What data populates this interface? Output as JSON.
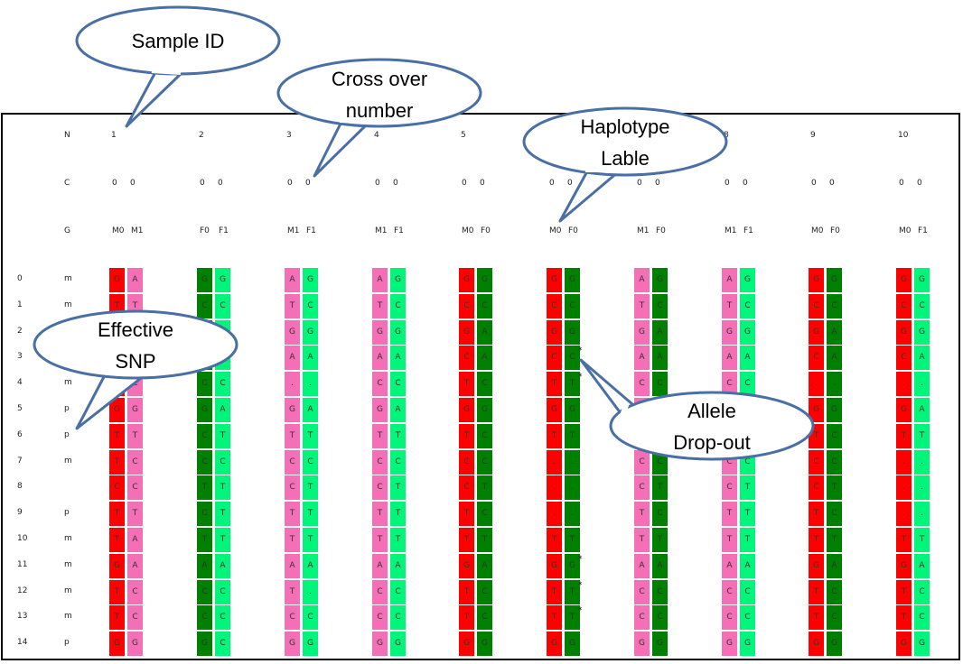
{
  "row_labels": {
    "n": "N",
    "c": "C",
    "g": "G"
  },
  "samples": [
    {
      "id": "1",
      "co": [
        "0",
        "0"
      ],
      "hap": [
        "M0",
        "M1"
      ]
    },
    {
      "id": "2",
      "co": [
        "0",
        "0"
      ],
      "hap": [
        "F0",
        "F1"
      ]
    },
    {
      "id": "3",
      "co": [
        "0",
        "0"
      ],
      "hap": [
        "M1",
        "F1"
      ]
    },
    {
      "id": "4",
      "co": [
        "0",
        "0"
      ],
      "hap": [
        "M1",
        "F1"
      ]
    },
    {
      "id": "5",
      "co": [
        "0",
        "0"
      ],
      "hap": [
        "M0",
        "F0"
      ]
    },
    {
      "id": "6",
      "co": [
        "0",
        "0"
      ],
      "hap": [
        "M0",
        "F0"
      ]
    },
    {
      "id": "7",
      "co": [
        "0",
        "0"
      ],
      "hap": [
        "M1",
        "F0"
      ]
    },
    {
      "id": "8",
      "co": [
        "0",
        "0"
      ],
      "hap": [
        "M1",
        "F1"
      ]
    },
    {
      "id": "9",
      "co": [
        "0",
        "0"
      ],
      "hap": [
        "M0",
        "F0"
      ]
    },
    {
      "id": "10",
      "co": [
        "0",
        "0"
      ],
      "hap": [
        "M0",
        "F1"
      ]
    }
  ],
  "snp_rows": [
    {
      "idx": "0",
      "type": "m"
    },
    {
      "idx": "1",
      "type": "m"
    },
    {
      "idx": "2",
      "type": ""
    },
    {
      "idx": "3",
      "type": ""
    },
    {
      "idx": "4",
      "type": "m"
    },
    {
      "idx": "5",
      "type": "p"
    },
    {
      "idx": "6",
      "type": "p"
    },
    {
      "idx": "7",
      "type": "m"
    },
    {
      "idx": "8",
      "type": ""
    },
    {
      "idx": "9",
      "type": "p"
    },
    {
      "idx": "10",
      "type": "m"
    },
    {
      "idx": "11",
      "type": "m"
    },
    {
      "idx": "12",
      "type": "m"
    },
    {
      "idx": "13",
      "type": "m"
    },
    {
      "idx": "14",
      "type": "p"
    }
  ],
  "genotypes": [
    [
      "G A",
      "G G",
      "A G",
      "A G",
      "G G",
      "G G",
      "A G",
      "A G",
      "G G",
      "G G"
    ],
    [
      "T T",
      "C C",
      "T C",
      "T C",
      "C C",
      "C C",
      "T C",
      "T C",
      "C C",
      "C C"
    ],
    [
      "G G",
      "G G",
      "G G",
      "G G",
      "G A",
      "G G",
      "G A",
      "G G",
      "G A",
      "G G"
    ],
    [
      "C A",
      "A A",
      "A A",
      "A A",
      "C A",
      "C C*",
      "A A",
      "A A",
      "C A",
      "C A"
    ],
    [
      "T C",
      "C C",
      ". .",
      "C C",
      "T C",
      "T T*",
      "C C",
      "C C",
      ". .",
      ". ."
    ],
    [
      "G G",
      "G A",
      "G A",
      "G A",
      "G G",
      "G G",
      "G A",
      "G G",
      "G G",
      "G A"
    ],
    [
      "T T",
      "C T",
      "T T",
      "T T",
      "T C",
      "T T",
      "T C",
      "T C",
      "T C",
      "T T"
    ],
    [
      "T C",
      "C C",
      "C C",
      "C C",
      "C C",
      ". .",
      "C C",
      "C C",
      "C C",
      ". ."
    ],
    [
      "C C",
      "T T",
      "C T",
      "C T",
      "C T",
      ". .",
      "C T",
      "C T",
      "C T",
      ". ."
    ],
    [
      "T T",
      "C T",
      "T T",
      "T T",
      "T C",
      ". .",
      "T C",
      "T T",
      "T C",
      ". ."
    ],
    [
      "T A",
      "T T",
      "T T",
      "T T",
      "T T",
      "T T",
      "T T",
      "T T",
      "T T",
      "T T"
    ],
    [
      "G A",
      "A A",
      "A A",
      "A A",
      "G A",
      "G G*",
      "A A",
      "A A",
      "G A",
      "G A"
    ],
    [
      "T C",
      "C C",
      "T .",
      "C C",
      "T C",
      "T T*",
      "C C",
      "C C",
      "T C",
      "T C"
    ],
    [
      "T C",
      "C C",
      "C C",
      "C C",
      "T C",
      "T T*",
      "C C",
      "C C",
      "T C",
      "T C"
    ],
    [
      "G G",
      "G C",
      "G G",
      "G G",
      "G G",
      "G G",
      "G G",
      "G G",
      "G G",
      "G G"
    ]
  ],
  "haplotype_colors": {
    "M0": "#ff0000",
    "M1": "#f56fb6",
    "F0": "#008000",
    "F1": "#00f57a"
  },
  "callouts": {
    "sample_id": "Sample ID",
    "crossover": [
      "Cross over",
      "number"
    ],
    "haplotype": [
      "Haplotype",
      "Lable"
    ],
    "effective_snp": [
      "Effective",
      "SNP"
    ],
    "allele_dropout": [
      "Allele",
      "Drop-out"
    ]
  }
}
